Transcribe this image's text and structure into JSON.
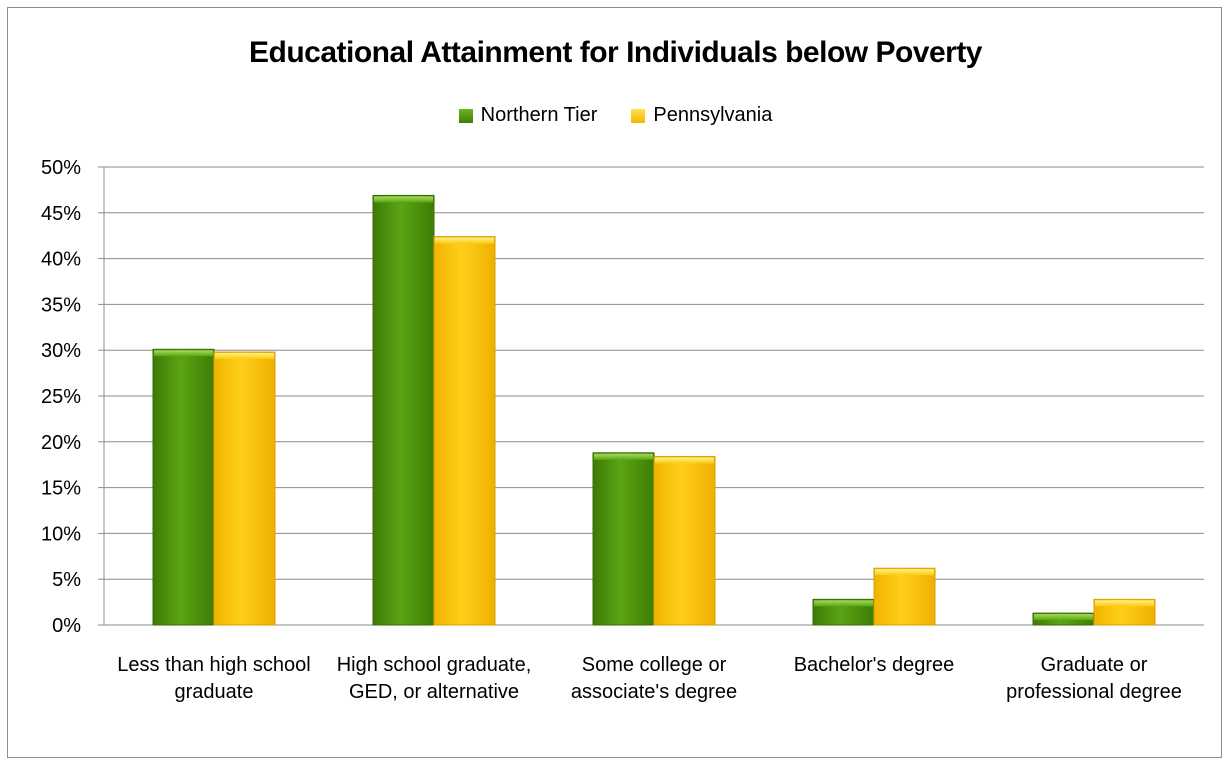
{
  "chart_data": {
    "type": "bar",
    "title": "Educational Attainment for Individuals below Poverty",
    "categories": [
      "Less than high school graduate",
      "High school graduate, GED,  or alternative",
      "Some college or associate's degree",
      "Bachelor's degree",
      "Graduate or professional degree"
    ],
    "series": [
      {
        "name": "Northern Tier",
        "values": [
          30.1,
          46.9,
          18.8,
          2.8,
          1.3
        ],
        "color": "#4f9a10"
      },
      {
        "name": "Pennsylvania",
        "values": [
          29.8,
          42.4,
          18.4,
          6.2,
          2.8
        ],
        "color": "#fcc400"
      }
    ],
    "ylim": [
      0,
      50
    ],
    "yticks": [
      "0%",
      "5%",
      "10%",
      "15%",
      "20%",
      "25%",
      "30%",
      "35%",
      "40%",
      "45%",
      "50%"
    ],
    "ytick_values": [
      0,
      5,
      10,
      15,
      20,
      25,
      30,
      35,
      40,
      45,
      50
    ],
    "legend_position": "top-center",
    "grid": true
  }
}
